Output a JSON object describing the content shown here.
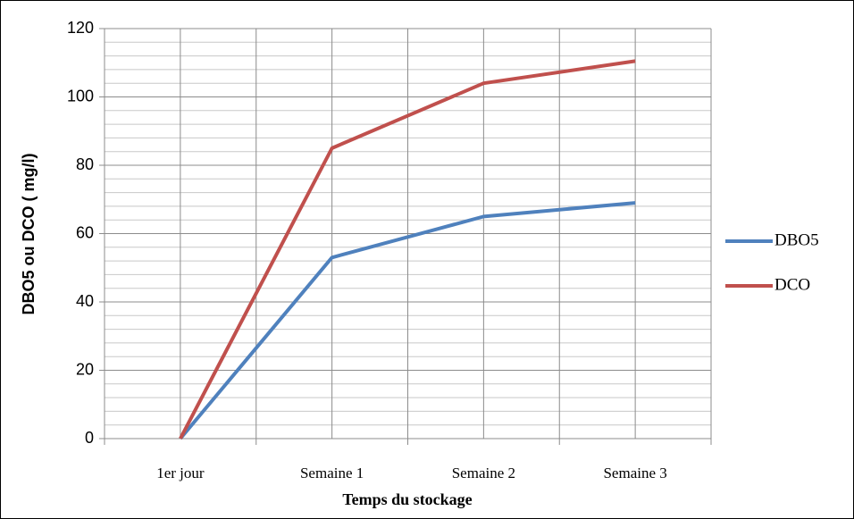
{
  "chart_data": {
    "type": "line",
    "categories": [
      "1er jour",
      "Semaine 1",
      "Semaine 2",
      "Semaine 3"
    ],
    "series": [
      {
        "name": "DBO5",
        "color": "#4f81bd",
        "values": [
          0,
          53,
          65,
          69
        ]
      },
      {
        "name": "DCO",
        "color": "#c0504d",
        "values": [
          0,
          85,
          104,
          110.5
        ]
      }
    ],
    "x_label": "Temps du stockage",
    "y_label": "DBO5 ou DCO ( mg/l)",
    "ylim": [
      0,
      120
    ],
    "yticks": [
      0,
      20,
      40,
      60,
      80,
      100,
      120
    ],
    "grid": true,
    "minor_grid": true,
    "legend": "right"
  }
}
